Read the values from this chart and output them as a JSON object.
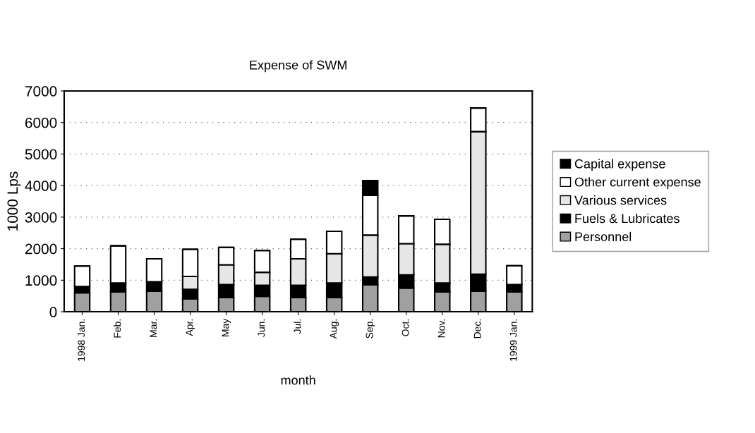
{
  "chart_data": {
    "type": "bar",
    "title": "Expense of SWM",
    "xlabel": "month",
    "ylabel": "1000 Lps",
    "stacked": true,
    "categories": [
      "1998 Jan.",
      "Feb.",
      "Mar.",
      "Apr.",
      "May",
      "Jun.",
      "Jul.",
      "Aug.",
      "Sep.",
      "Oct.",
      "Nov.",
      "Dec.",
      "1999 Jan."
    ],
    "series": [
      {
        "name": "Personnel",
        "color": "#a0a0a0",
        "values": [
          600,
          630,
          650,
          410,
          450,
          490,
          450,
          450,
          860,
          750,
          630,
          650,
          630
        ]
      },
      {
        "name": "Fuels & Lubricates",
        "color": "#000000",
        "values": [
          200,
          280,
          300,
          300,
          410,
          350,
          390,
          460,
          240,
          420,
          280,
          540,
          230
        ]
      },
      {
        "name": "Various services",
        "color": "#e6e6e6",
        "values": [
          0,
          0,
          0,
          410,
          630,
          410,
          840,
          930,
          1330,
          990,
          1230,
          4520,
          0
        ]
      },
      {
        "name": "Other current expense",
        "color": "#ffffff",
        "values": [
          650,
          1180,
          730,
          860,
          550,
          690,
          620,
          710,
          1260,
          880,
          790,
          750,
          600
        ]
      },
      {
        "name": "Capital expense",
        "color": "#000000",
        "values": [
          0,
          0,
          0,
          0,
          0,
          0,
          0,
          0,
          470,
          0,
          0,
          0,
          0
        ]
      }
    ],
    "ylim": [
      0,
      7000
    ],
    "yticks": [
      0,
      1000,
      2000,
      3000,
      4000,
      5000,
      6000,
      7000
    ],
    "grid": "y",
    "legend": "right"
  }
}
